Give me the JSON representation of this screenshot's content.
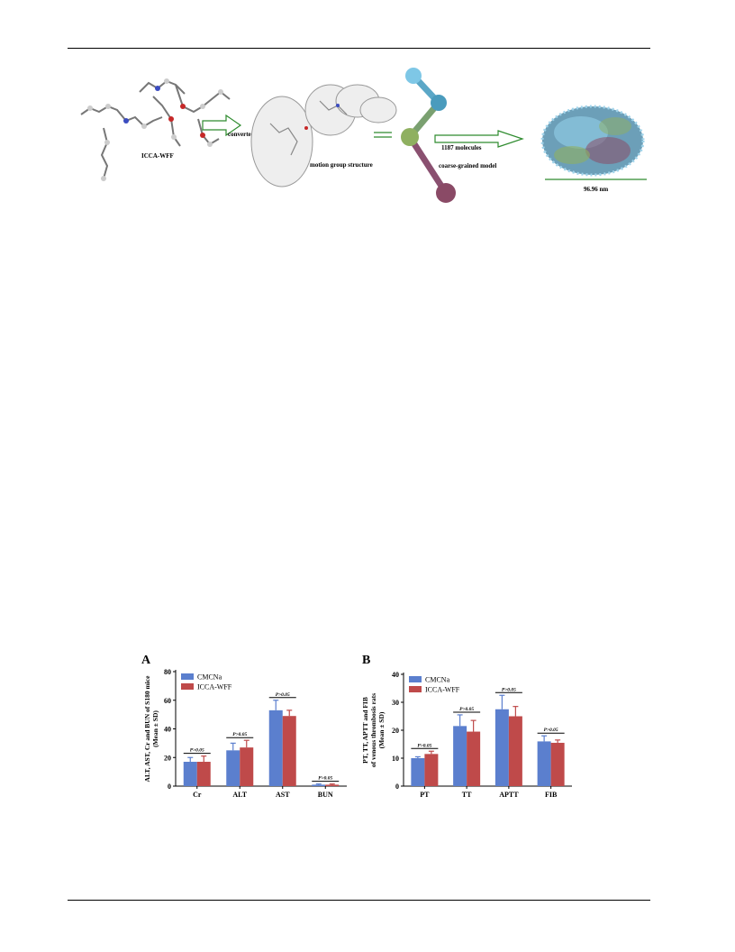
{
  "scheme": {
    "molecule_label": "ICCA-WFF",
    "arrow1_label": "converted to",
    "motion_label": "motion group structure",
    "molecules_label": "1187 molecules",
    "cg_label": "coarse-grained model",
    "size_label": "96.96 nm"
  },
  "chart_data": [
    {
      "panel": "A",
      "type": "bar",
      "categories": [
        "Cr",
        "ALT",
        "AST",
        "BUN"
      ],
      "ylabel_line1": "ALT, AST, Cr and BUN of S180 mice",
      "ylabel_line2": "(Mean ± SD)",
      "ylim": [
        0,
        80
      ],
      "yticks": [
        0,
        20,
        40,
        60,
        80
      ],
      "series": [
        {
          "name": "CMCNa",
          "color": "#5b7fce",
          "values": [
            17,
            25,
            53,
            1
          ],
          "errors": [
            3,
            5,
            7,
            0.5
          ]
        },
        {
          "name": "ICCA-WFF",
          "color": "#bf4a4a",
          "values": [
            17,
            27,
            49,
            1
          ],
          "errors": [
            4,
            5,
            4,
            0.5
          ]
        }
      ],
      "significance": [
        "P>0.05",
        "P>0.05",
        "P>0.05",
        "P>0.05"
      ],
      "legend": "top-left"
    },
    {
      "panel": "B",
      "type": "bar",
      "categories": [
        "PT",
        "TT",
        "APTT",
        "FIB"
      ],
      "ylabel_line1": "PT, TT, APTT and FIB",
      "ylabel_line2": "of venous thrombosis rats",
      "ylabel_line3": "(Mean ± SD)",
      "ylim": [
        0,
        40
      ],
      "yticks": [
        0,
        10,
        20,
        30,
        40
      ],
      "series": [
        {
          "name": "CMCNa",
          "color": "#5b7fce",
          "values": [
            10,
            21.5,
            27.5,
            16
          ],
          "errors": [
            0.5,
            4,
            5,
            2
          ]
        },
        {
          "name": "ICCA-WFF",
          "color": "#bf4a4a",
          "values": [
            11.5,
            19.5,
            25,
            15.5
          ],
          "errors": [
            1,
            4,
            3.5,
            1
          ]
        }
      ],
      "significance": [
        "P>0.05",
        "P>0.05",
        "P>0.05",
        "P>0.05"
      ],
      "legend": "top-left"
    }
  ]
}
